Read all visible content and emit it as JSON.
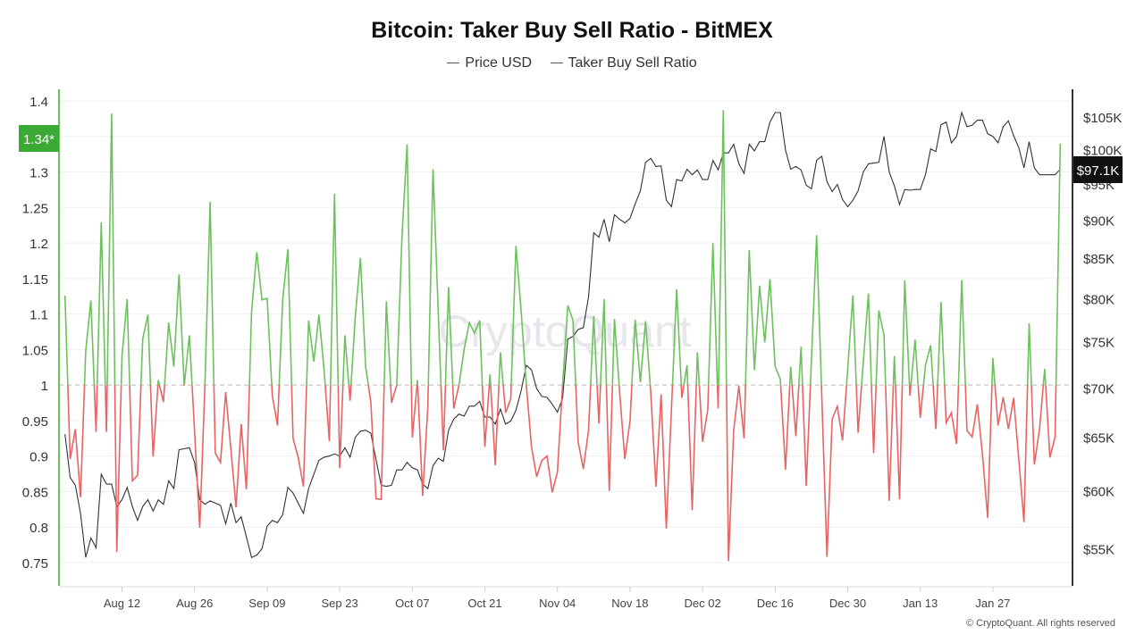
{
  "chart_data": {
    "type": "line",
    "title": "Bitcoin: Taker Buy Sell Ratio - BitMEX",
    "legend_position": "top-center",
    "grid": true,
    "x_tick_labels": [
      "Aug 12",
      "Aug 26",
      "Sep 09",
      "Sep 23",
      "Oct 07",
      "Oct 21",
      "Nov 04",
      "Nov 18",
      "Dec 02",
      "Dec 16",
      "Dec 30",
      "Jan 13",
      "Jan 27"
    ],
    "left_axis": {
      "ticks": [
        "1.4",
        "1.3",
        "1.25",
        "1.2",
        "1.15",
        "1.1",
        "1.05",
        "1",
        "0.95",
        "0.9",
        "0.85",
        "0.8",
        "0.75"
      ],
      "range": [
        0.75,
        1.4
      ],
      "reference_line": 1
    },
    "right_axis": {
      "scale": "log",
      "ticks": [
        "$105K",
        "$100K",
        "$95K",
        "$90K",
        "$85K",
        "$80K",
        "$75K",
        "$70K",
        "$65K",
        "$60K",
        "$55K"
      ],
      "tick_values": [
        105000,
        100000,
        95000,
        90000,
        85000,
        80000,
        75000,
        70000,
        65000,
        60000,
        55000
      ]
    },
    "current_ratio_label": "1.34*",
    "current_price_label": "$97.1K",
    "colors": {
      "ratio_above": "#6cc15d",
      "ratio_below": "#e86363",
      "price": "#333333",
      "ratio_badge": "#3aaa35",
      "price_badge": "#111111",
      "left_axis": "#6cc15d"
    },
    "x": [
      "Aug 01",
      "Aug 02",
      "Aug 03",
      "Aug 04",
      "Aug 05",
      "Aug 06",
      "Aug 07",
      "Aug 08",
      "Aug 09",
      "Aug 10",
      "Aug 11",
      "Aug 12",
      "Aug 13",
      "Aug 14",
      "Aug 15",
      "Aug 16",
      "Aug 17",
      "Aug 18",
      "Aug 19",
      "Aug 20",
      "Aug 21",
      "Aug 22",
      "Aug 23",
      "Aug 24",
      "Aug 25",
      "Aug 26",
      "Aug 27",
      "Aug 28",
      "Aug 29",
      "Aug 30",
      "Aug 31",
      "Sep 01",
      "Sep 02",
      "Sep 03",
      "Sep 04",
      "Sep 05",
      "Sep 06",
      "Sep 07",
      "Sep 08",
      "Sep 09",
      "Sep 10",
      "Sep 11",
      "Sep 12",
      "Sep 13",
      "Sep 14",
      "Sep 15",
      "Sep 16",
      "Sep 17",
      "Sep 18",
      "Sep 19",
      "Sep 20",
      "Sep 21",
      "Sep 22",
      "Sep 23",
      "Sep 24",
      "Sep 25",
      "Sep 26",
      "Sep 27",
      "Sep 28",
      "Sep 29",
      "Sep 30",
      "Oct 01",
      "Oct 02",
      "Oct 03",
      "Oct 04",
      "Oct 05",
      "Oct 06",
      "Oct 07",
      "Oct 08",
      "Oct 09",
      "Oct 10",
      "Oct 11",
      "Oct 12",
      "Oct 13",
      "Oct 14",
      "Oct 15",
      "Oct 16",
      "Oct 17",
      "Oct 18",
      "Oct 19",
      "Oct 20",
      "Oct 21",
      "Oct 22",
      "Oct 23",
      "Oct 24",
      "Oct 25",
      "Oct 26",
      "Oct 27",
      "Oct 28",
      "Oct 29",
      "Oct 30",
      "Oct 31",
      "Nov 01",
      "Nov 02",
      "Nov 03",
      "Nov 04",
      "Nov 05",
      "Nov 06",
      "Nov 07",
      "Nov 08",
      "Nov 09",
      "Nov 10",
      "Nov 11",
      "Nov 12",
      "Nov 13",
      "Nov 14",
      "Nov 15",
      "Nov 16",
      "Nov 17",
      "Nov 18",
      "Nov 19",
      "Nov 20",
      "Nov 21",
      "Nov 22",
      "Nov 23",
      "Nov 24",
      "Nov 25",
      "Nov 26",
      "Nov 27",
      "Nov 28",
      "Nov 29",
      "Nov 30",
      "Dec 01",
      "Dec 02",
      "Dec 03",
      "Dec 04",
      "Dec 05",
      "Dec 06",
      "Dec 07",
      "Dec 08",
      "Dec 09",
      "Dec 10",
      "Dec 11",
      "Dec 12",
      "Dec 13",
      "Dec 14",
      "Dec 15",
      "Dec 16",
      "Dec 17",
      "Dec 18",
      "Dec 19",
      "Dec 20",
      "Dec 21",
      "Dec 22",
      "Dec 23",
      "Dec 24",
      "Dec 25",
      "Dec 26",
      "Dec 27",
      "Dec 28",
      "Dec 29",
      "Dec 30",
      "Dec 31",
      "Jan 01",
      "Jan 02",
      "Jan 03",
      "Jan 04",
      "Jan 05",
      "Jan 06",
      "Jan 07",
      "Jan 08",
      "Jan 09",
      "Jan 10",
      "Jan 11",
      "Jan 12",
      "Jan 13",
      "Jan 14",
      "Jan 15",
      "Jan 16",
      "Jan 17",
      "Jan 18",
      "Jan 19",
      "Jan 20",
      "Jan 21",
      "Jan 22",
      "Jan 23",
      "Jan 24",
      "Jan 25",
      "Jan 26",
      "Jan 27",
      "Jan 28",
      "Jan 29",
      "Jan 30",
      "Jan 31",
      "Feb 01",
      "Feb 02",
      "Feb 03",
      "Feb 04",
      "Feb 05",
      "Feb 06",
      "Feb 07",
      "Feb 08",
      "Feb 09"
    ],
    "series": [
      {
        "name": "Taker Buy Sell Ratio",
        "axis": "left",
        "values": [
          1.126,
          0.896,
          0.938,
          0.842,
          1.048,
          1.119,
          0.934,
          1.229,
          0.934,
          1.382,
          0.765,
          1.041,
          1.121,
          0.865,
          0.873,
          1.065,
          1.099,
          0.899,
          1.007,
          0.976,
          1.088,
          1.026,
          1.156,
          0.999,
          1.07,
          0.935,
          0.799,
          1.0,
          1.258,
          0.904,
          0.891,
          0.99,
          0.91,
          0.828,
          0.945,
          0.853,
          1.104,
          1.187,
          1.12,
          1.122,
          0.985,
          0.943,
          1.12,
          1.191,
          0.925,
          0.898,
          0.857,
          1.091,
          1.033,
          1.099,
          1.02,
          0.921,
          1.269,
          0.883,
          1.07,
          0.978,
          1.096,
          1.179,
          1.026,
          0.976,
          0.84,
          0.839,
          1.118,
          0.975,
          1.0,
          1.207,
          1.339,
          0.926,
          1.007,
          0.844,
          0.97,
          1.304,
          1.104,
          0.908,
          1.138,
          0.967,
          1.0,
          1.05,
          1.088,
          1.073,
          1.091,
          0.913,
          1.015,
          0.887,
          1.046,
          0.961,
          0.981,
          1.196,
          1.104,
          1.0,
          0.913,
          0.871,
          0.894,
          0.9,
          0.849,
          0.878,
          1.0,
          1.112,
          1.091,
          0.92,
          0.882,
          0.936,
          1.097,
          0.946,
          1.121,
          0.851,
          1.093,
          0.99,
          0.896,
          0.949,
          1.092,
          1.004,
          1.09,
          0.99,
          0.857,
          0.987,
          0.798,
          0.967,
          1.135,
          0.982,
          1.028,
          0.824,
          1.046,
          0.92,
          0.965,
          1.2,
          0.967,
          1.387,
          0.752,
          0.936,
          0.999,
          0.925,
          1.19,
          1.021,
          1.14,
          1.06,
          1.149,
          1.026,
          1.008,
          0.881,
          1.026,
          0.928,
          1.054,
          0.858,
          1.035,
          1.211,
          0.984,
          0.758,
          0.952,
          0.97,
          0.922,
          1.023,
          1.126,
          0.933,
          1.032,
          1.129,
          0.904,
          1.105,
          1.07,
          0.837,
          1.041,
          0.839,
          1.147,
          0.985,
          1.064,
          0.954,
          1.028,
          1.056,
          0.938,
          1.117,
          0.947,
          0.961,
          0.917,
          1.148,
          0.936,
          0.927,
          0.973,
          0.902,
          0.813,
          1.038,
          0.943,
          0.983,
          0.938,
          0.982,
          0.896,
          0.807,
          1.087,
          0.888,
          0.938,
          1.023,
          0.898,
          0.927,
          1.34
        ]
      },
      {
        "name": "Price USD",
        "axis": "right",
        "values": [
          65300,
          61200,
          60500,
          58000,
          54300,
          55900,
          55100,
          61500,
          60600,
          60600,
          58600,
          59200,
          60300,
          58600,
          57400,
          58600,
          59200,
          58200,
          59200,
          58800,
          60900,
          60200,
          63800,
          63900,
          64000,
          62600,
          59200,
          58800,
          59100,
          58900,
          58700,
          57100,
          58900,
          57200,
          57700,
          56000,
          54300,
          54500,
          55000,
          56900,
          57400,
          57200,
          57900,
          60300,
          59800,
          58900,
          58000,
          60200,
          61500,
          62800,
          63100,
          63200,
          63400,
          63200,
          64000,
          63100,
          65000,
          65600,
          65700,
          65400,
          62900,
          60500,
          60400,
          60500,
          61900,
          61900,
          62600,
          62100,
          61900,
          60600,
          60200,
          62300,
          63000,
          62700,
          65700,
          66800,
          67300,
          67100,
          68100,
          68100,
          68600,
          67000,
          67000,
          66300,
          67800,
          66300,
          66600,
          67700,
          69700,
          72400,
          71900,
          69900,
          69100,
          69000,
          68300,
          67500,
          68900,
          75300,
          75600,
          76400,
          76600,
          80200,
          88300,
          87700,
          90100,
          87100,
          90700,
          90100,
          89600,
          90200,
          92200,
          94000,
          98100,
          98700,
          97500,
          97600,
          92700,
          91800,
          95600,
          95400,
          97100,
          96300,
          97000,
          95600,
          95600,
          98400,
          97000,
          99500,
          99500,
          100800,
          97900,
          96500,
          100800,
          99800,
          101200,
          101200,
          104200,
          105700,
          105700,
          99900,
          97100,
          97500,
          97000,
          94800,
          94300,
          98400,
          99000,
          95300,
          93900,
          94900,
          92800,
          91800,
          92700,
          94000,
          96700,
          97900,
          98000,
          98100,
          102000,
          96700,
          94700,
          92100,
          94200,
          94100,
          94200,
          94200,
          96300,
          100100,
          99700,
          103800,
          104200,
          101000,
          102000,
          105700,
          103500,
          103700,
          104500,
          104500,
          102400,
          102000,
          101000,
          103500,
          104400,
          102100,
          100300,
          97300,
          101200,
          97300,
          96300,
          96300,
          96300,
          96300,
          97100
        ]
      }
    ]
  },
  "legend": {
    "items": [
      "Price USD",
      "Taker Buy Sell Ratio"
    ]
  },
  "watermark": "CryptoQuant",
  "copyright": "© CryptoQuant. All rights reserved"
}
